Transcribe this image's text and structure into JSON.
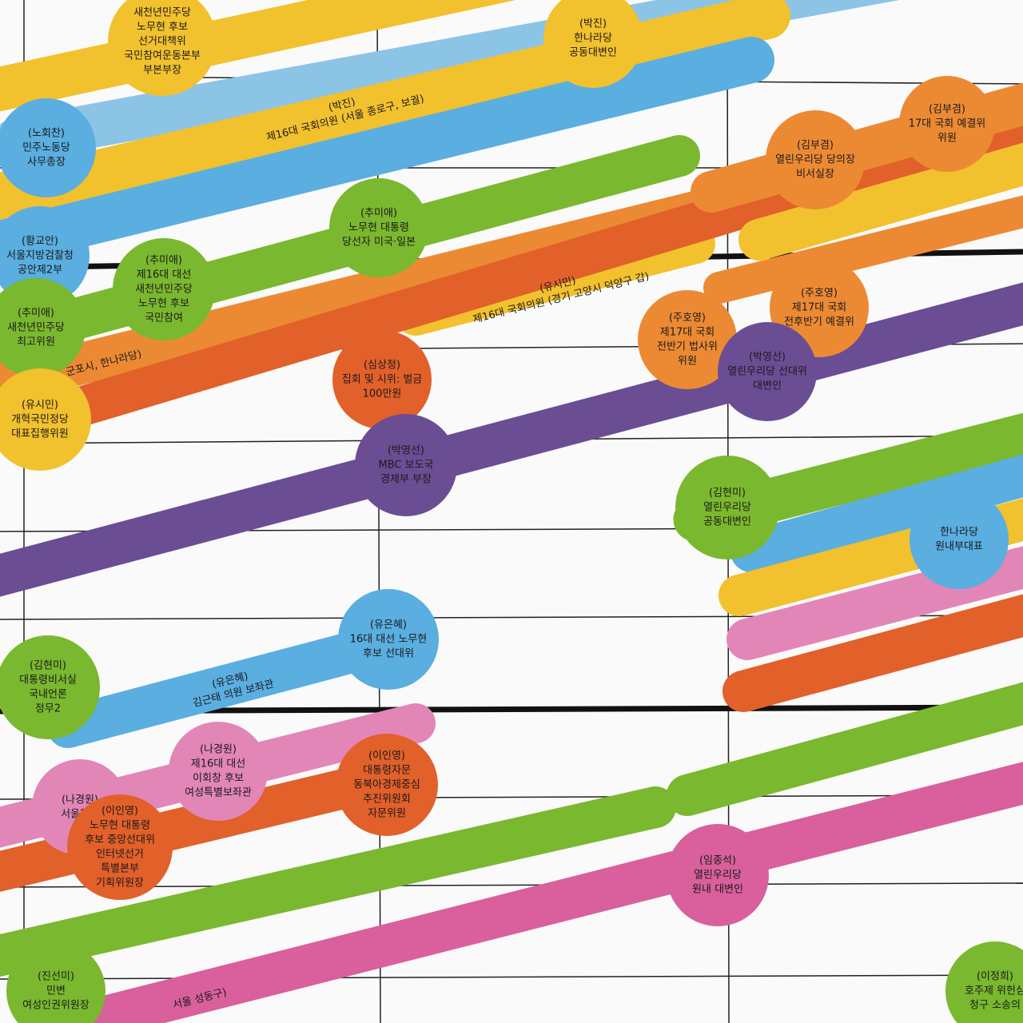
{
  "bubbles": [
    {
      "lines": [
        "새천년민주당",
        "노무현 후보",
        "선거대책위",
        "국민참여운동본부",
        "부본부장"
      ]
    },
    {
      "lines": [
        "(박진)",
        "한나라당",
        "공동대변인"
      ]
    },
    {
      "lines": [
        "(노회찬)",
        "민주노동당",
        "사무총장"
      ]
    },
    {
      "lines": [
        "(김부겸)",
        "17대 국회 예결위",
        "위원"
      ]
    },
    {
      "lines": [
        "(김부겸)",
        "열린우리당 당의장",
        "비서실장"
      ]
    },
    {
      "lines": [
        "(추미애)",
        "노무현 대통령",
        "당선자 미국·일본"
      ]
    },
    {
      "lines": [
        "(황교안)",
        "서울지방검찰청",
        "공안제2부"
      ]
    },
    {
      "lines": [
        "(추미애)",
        "제16대 대선",
        "새천년민주당",
        "노무현 후보",
        "국민참여"
      ]
    },
    {
      "lines": [
        "(추미애)",
        "새천년민주당",
        "최고위원"
      ]
    },
    {
      "lines": [
        "(주호영)",
        "제17대 국회",
        "전후반기 예결위"
      ]
    },
    {
      "lines": [
        "(주호영)",
        "제17대 국회",
        "전반기 법사위",
        "위원"
      ]
    },
    {
      "lines": [
        "(심상정)",
        "집회 및 시위: 벌금",
        "100만원"
      ]
    },
    {
      "lines": [
        "(박영선)",
        "열린우리당 선대위",
        "대변인"
      ]
    },
    {
      "lines": [
        "(유시민)",
        "개혁국민정당",
        "대표집행위원"
      ]
    },
    {
      "lines": [
        "(박영선)",
        "MBC 보도국",
        "경제부 부장"
      ]
    },
    {
      "lines": [
        "(김현미)",
        "열린우리당",
        "공동대변인"
      ]
    },
    {
      "lines": [
        "한나라당",
        "원내부대표"
      ]
    },
    {
      "lines": [
        "(유은혜)",
        "16대 대선 노무현",
        "후보 선대위"
      ]
    },
    {
      "lines": [
        "(김현미)",
        "대통령비서실",
        "국내언론",
        "정무2"
      ]
    },
    {
      "lines": [
        "(나경원)",
        "제16대 대선",
        "이회창 후보",
        "여성특별보좌관"
      ]
    },
    {
      "lines": [
        "(이인영)",
        "대통령자문",
        "동북아경제중심",
        "추진위원회",
        "자문위원"
      ]
    },
    {
      "lines": [
        "(나경원)",
        "서울행정"
      ]
    },
    {
      "lines": [
        "(이인영)",
        "노무현 대통령",
        "후보 중앙선대위",
        "인터넷선거",
        "특별본부",
        "기획위원장"
      ]
    },
    {
      "lines": [
        "(임종석)",
        "열린우리당",
        "원내 대변인"
      ]
    },
    {
      "lines": [
        "(진선미)",
        "민변",
        "여성인권위원장"
      ]
    },
    {
      "lines": [
        "(이정희)",
        "호주제 위헌심",
        "청구 소송의"
      ]
    }
  ],
  "bands": [
    {
      "lines": [
        "(박진)",
        "제16대 국회의원 (서울 종로구, 보궐)"
      ]
    },
    {
      "lines": [
        "(유시민)",
        "제16대 국회의원 (경기 고양시 덕양구 갑)"
      ]
    },
    {
      "lines": [
        "군포시, 한나라당)"
      ]
    },
    {
      "lines": [
        "(유은혜)",
        "김근태 의원 보좌관"
      ]
    },
    {
      "lines": [
        "서울 성동구)"
      ]
    }
  ]
}
